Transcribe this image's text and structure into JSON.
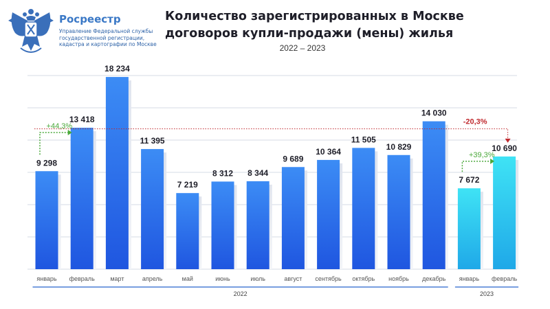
{
  "org": {
    "name": "Росреестр",
    "subtitle_lines": [
      "Управление Федеральной службы",
      "государственной регистрации,",
      "кадастра и картографии по Москве"
    ]
  },
  "title_lines": [
    "Количество зарегистрированных в Москве",
    "договоров купли-продажи (мены) жилья"
  ],
  "subtitle": "2022 – 2023",
  "colors": {
    "bar_2022_top": "#3c8cf5",
    "bar_2022_bottom": "#1f56e0",
    "bar_2023_top": "#3fe3f5",
    "bar_2023_bottom": "#1fa8e8",
    "grid": "#d6dbe6",
    "positive": "#4aa83a",
    "negative": "#c0282d",
    "ref_line": "#c0282d"
  },
  "chart_data": {
    "type": "bar",
    "categories": [
      "январь",
      "февраль",
      "март",
      "апрель",
      "май",
      "июнь",
      "июль",
      "август",
      "сентябрь",
      "октябрь",
      "ноябрь",
      "декабрь",
      "январь",
      "февраль"
    ],
    "values": [
      9298,
      13418,
      18234,
      11395,
      7219,
      8312,
      8344,
      9689,
      10364,
      11505,
      10829,
      14030,
      7672,
      10690
    ],
    "value_labels": [
      "9 298",
      "13 418",
      "18 234",
      "11 395",
      "7 219",
      "8 312",
      "8 344",
      "9 689",
      "10 364",
      "11 505",
      "10 829",
      "14 030",
      "7 672",
      "10 690"
    ],
    "years": [
      "2022",
      "2022",
      "2022",
      "2022",
      "2022",
      "2022",
      "2022",
      "2022",
      "2022",
      "2022",
      "2022",
      "2022",
      "2023",
      "2023"
    ],
    "year_groups": [
      {
        "label": "2022",
        "from": 0,
        "to": 11
      },
      {
        "label": "2023",
        "from": 12,
        "to": 13
      }
    ],
    "ylim": [
      0,
      18500
    ],
    "grid": true,
    "annotations": [
      {
        "text": "+44,3%",
        "from": 0,
        "to": 1,
        "type": "positive"
      },
      {
        "text": "+39,3%",
        "from": 12,
        "to": 13,
        "type": "positive"
      },
      {
        "text": "-20,3%",
        "from": 11,
        "to": 13,
        "type": "negative"
      }
    ]
  }
}
